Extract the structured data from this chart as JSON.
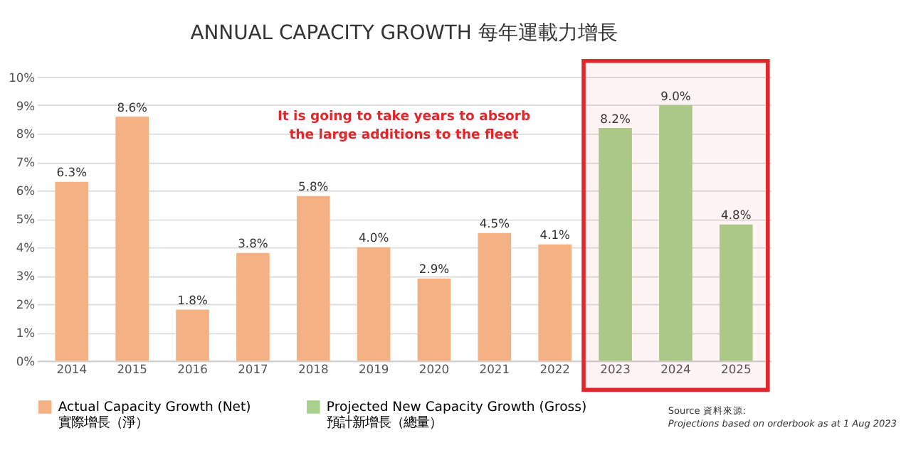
{
  "chart_data": {
    "type": "bar",
    "title": "ANNUAL CAPACITY GROWTH 每年運載力增長",
    "categories": [
      "2014",
      "2015",
      "2016",
      "2017",
      "2018",
      "2019",
      "2020",
      "2021",
      "2022",
      "2023",
      "2024",
      "2025"
    ],
    "series": [
      {
        "name": "Actual Capacity Growth (Net)\n實際增長（淨）",
        "color": "#f4b183",
        "values": [
          6.3,
          8.6,
          1.8,
          3.8,
          5.8,
          4.0,
          2.9,
          4.5,
          4.1,
          null,
          null,
          null
        ],
        "value_labels": [
          "6.3%",
          "8.6%",
          "1.8%",
          "3.8%",
          "5.8%",
          "4.0%",
          "2.9%",
          "4.5%",
          "4.1%",
          null,
          null,
          null
        ]
      },
      {
        "name": "Projected New Capacity Growth (Gross)\n預計新增長（總量）",
        "color": "#a9d18e",
        "values": [
          null,
          null,
          null,
          null,
          null,
          null,
          null,
          null,
          null,
          8.2,
          9.0,
          4.8
        ],
        "value_labels": [
          null,
          null,
          null,
          null,
          null,
          null,
          null,
          null,
          null,
          "8.2%",
          "9.0%",
          "4.8%"
        ]
      }
    ],
    "ylim": [
      0,
      10
    ],
    "yticks": [
      {
        "value": 0,
        "label": "0%"
      },
      {
        "value": 1,
        "label": "1%"
      },
      {
        "value": 2,
        "label": "2%"
      },
      {
        "value": 3,
        "label": "3%"
      },
      {
        "value": 4,
        "label": "4%"
      },
      {
        "value": 5,
        "label": "5%"
      },
      {
        "value": 6,
        "label": "6%"
      },
      {
        "value": 7,
        "label": "7%"
      },
      {
        "value": 8,
        "label": "8%"
      },
      {
        "value": 9,
        "label": "9%"
      },
      {
        "value": 10,
        "label": "10%"
      }
    ],
    "grid": "y",
    "legend": "bottom",
    "bands": [
      {
        "axis": "x",
        "from": "2023",
        "to": "2025",
        "color": "#e3262b"
      }
    ],
    "annotations": [
      "It is going to take years to absorb\nthe large additions to the fleet",
      "Source 資料來源:",
      "Projections based on orderbook as at 1 Aug 2023"
    ]
  }
}
